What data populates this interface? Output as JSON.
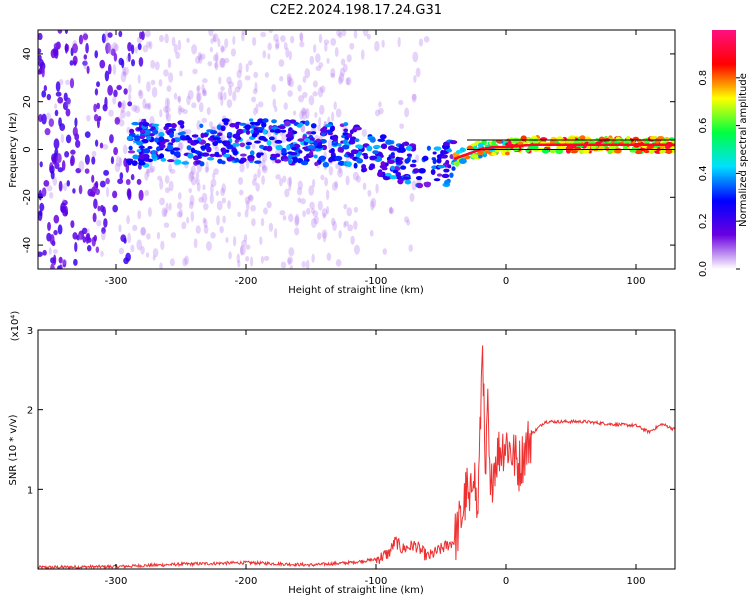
{
  "title": "C2E2.2024.198.17.24.G31",
  "chart_data": [
    {
      "type": "heatmap",
      "xlabel": "Height of straight line (km)",
      "ylabel": "Frequency (Hz)",
      "xlim": [
        -360,
        130
      ],
      "ylim": [
        -50,
        50
      ],
      "x_ticks": [
        -300,
        -200,
        -100,
        0,
        100
      ],
      "y_ticks": [
        -40,
        -20,
        0,
        20,
        40
      ],
      "colorbar": {
        "label": "Normalized spectral amplitude",
        "range": [
          0,
          1
        ],
        "ticks": [
          "0.0",
          "0.2",
          "0.4",
          "0.6",
          "0.8"
        ],
        "colormap": [
          "#ffffff",
          "#6a00e0",
          "#0000ff",
          "#00e0ff",
          "#00ff40",
          "#ffff00",
          "#ff0000",
          "#ff1080"
        ]
      },
      "signal_track": {
        "x": [
          -280,
          -250,
          -220,
          -200,
          -180,
          -150,
          -120,
          -100,
          -80,
          -60,
          -50,
          -40,
          -30,
          -20,
          -10,
          0,
          20,
          50,
          80,
          100,
          130
        ],
        "y": [
          2,
          3,
          3,
          4,
          3,
          3,
          2,
          -2,
          -5,
          -8,
          -8,
          -4,
          -2,
          0,
          1,
          1,
          2,
          2,
          2,
          2,
          2
        ]
      }
    },
    {
      "type": "line",
      "xlabel": "Height of straight line (km)",
      "ylabel": "SNR (10 * v/v)",
      "scale_label": "(x10⁴)",
      "xlim": [
        -360,
        130
      ],
      "ylim": [
        0,
        3
      ],
      "x_ticks": [
        -300,
        -200,
        -100,
        0,
        100
      ],
      "y_ticks": [
        1,
        2,
        3
      ],
      "line_color": "#ee3030",
      "series": [
        {
          "x": [
            -360,
            -300,
            -250,
            -200,
            -150,
            -120,
            -100,
            -90,
            -85,
            -80,
            -70,
            -60,
            -50,
            -40,
            -35,
            -30,
            -28,
            -25,
            -22,
            -20,
            -18,
            -16,
            -14,
            -12,
            -10,
            -5,
            0,
            10,
            20,
            30,
            40,
            60,
            80,
            100,
            110,
            120,
            130
          ],
          "y": [
            0.02,
            0.03,
            0.06,
            0.08,
            0.05,
            0.08,
            0.12,
            0.2,
            0.35,
            0.25,
            0.3,
            0.15,
            0.25,
            0.35,
            0.6,
            1.0,
            0.7,
            1.4,
            0.6,
            1.6,
            3.0,
            1.0,
            2.0,
            0.8,
            1.3,
            1.5,
            1.6,
            1.3,
            1.7,
            1.85,
            1.85,
            1.85,
            1.82,
            1.8,
            1.72,
            1.82,
            1.75
          ]
        }
      ]
    }
  ]
}
